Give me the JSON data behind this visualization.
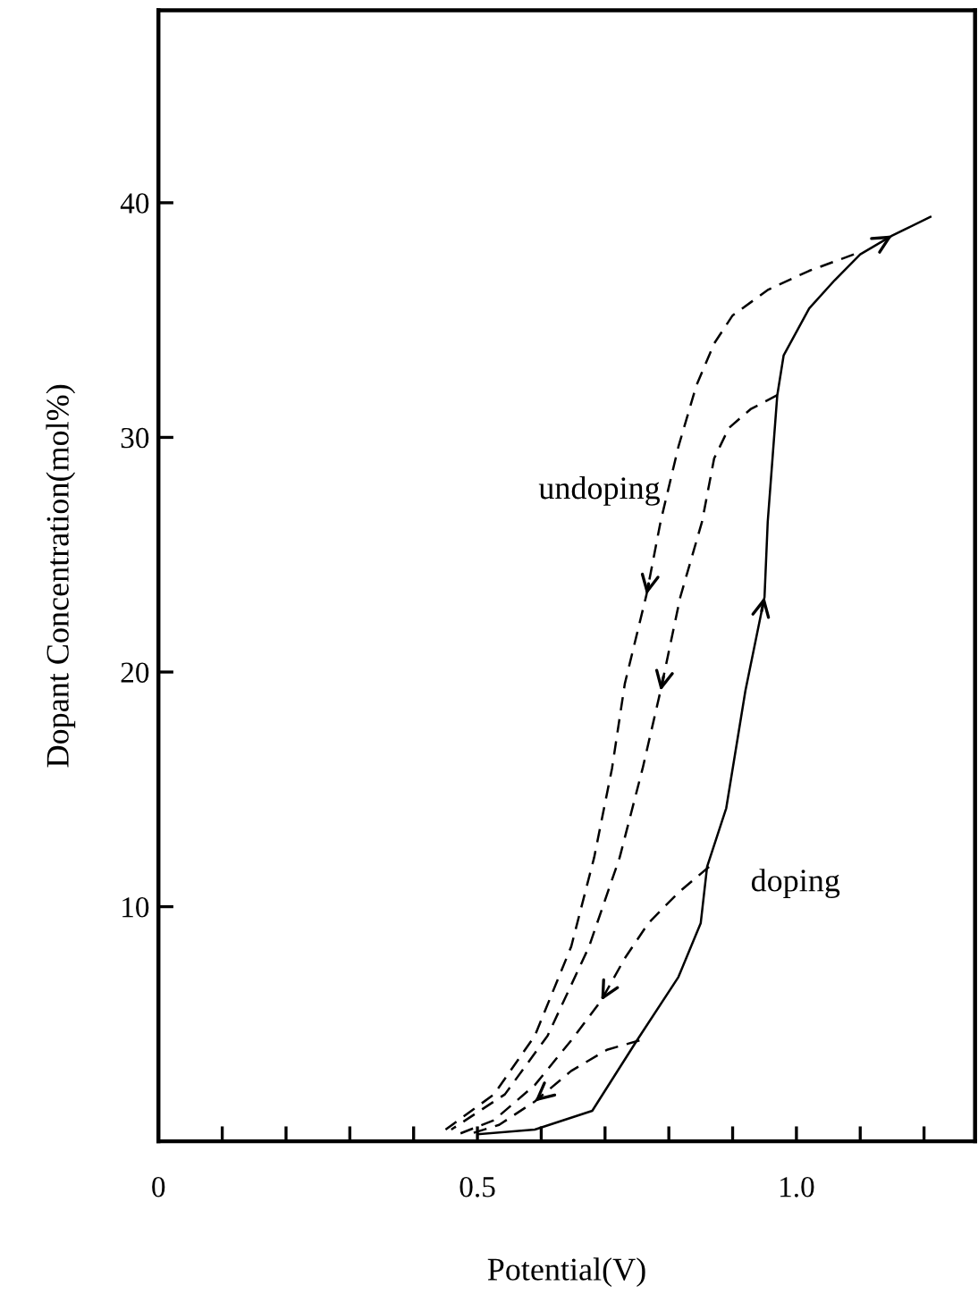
{
  "chart_data": {
    "type": "line",
    "xlabel": "Potential(V)",
    "ylabel": "Dopant Concentration(mol%)",
    "xlim": [
      0,
      1.28
    ],
    "ylim": [
      0,
      48.2
    ],
    "xticks": [
      0,
      {
        "value": 0.1,
        "label": null
      },
      {
        "value": 0.2,
        "label": null
      },
      {
        "value": 0.3,
        "label": null
      },
      {
        "value": 0.4,
        "label": null
      },
      0.5,
      {
        "value": 0.6,
        "label": null
      },
      {
        "value": 0.7,
        "label": null
      },
      {
        "value": 0.8,
        "label": null
      },
      {
        "value": 0.9,
        "label": null
      },
      {
        "value": 1.0,
        "label": "1.0"
      },
      {
        "value": 1.1,
        "label": null
      },
      {
        "value": 1.2,
        "label": null
      }
    ],
    "yticks": [
      10,
      20,
      30,
      40
    ],
    "grid": false,
    "legend": false,
    "marker": "none",
    "annotations": [
      "undoping",
      "doping"
    ],
    "series": [
      {
        "color": "#000000",
        "line_style": "solid",
        "x": [
          0.501,
          0.59,
          0.68,
          0.75,
          0.815,
          0.85,
          0.86,
          0.89,
          0.92,
          0.95,
          0.955,
          0.97,
          0.98,
          1.02,
          1.06,
          1.1,
          1.15,
          1.21
        ],
        "values": [
          0.3,
          0.5,
          1.3,
          4.3,
          7.0,
          9.3,
          11.7,
          14.2,
          19.2,
          23.2,
          26.4,
          31.8,
          33.5,
          35.5,
          36.7,
          37.8,
          38.6,
          39.4
        ]
      },
      {
        "color": "#000000",
        "line_style": "dashed",
        "x": [
          1.09,
          1.02,
          0.956,
          0.9,
          0.871,
          0.843,
          0.815,
          0.787,
          0.765,
          0.731,
          0.711,
          0.683,
          0.647,
          0.59,
          0.526,
          0.44
        ],
        "values": [
          37.8,
          37.1,
          36.3,
          35.2,
          34.0,
          32.2,
          29.6,
          26.4,
          23.3,
          19.5,
          15.9,
          12.1,
          8.3,
          4.5,
          2.0,
          0.3
        ]
      },
      {
        "color": "#000000",
        "line_style": "dashed",
        "x": [
          0.97,
          0.928,
          0.894,
          0.871,
          0.852,
          0.818,
          0.787,
          0.759,
          0.723,
          0.675,
          0.61,
          0.543,
          0.459
        ],
        "values": [
          31.8,
          31.2,
          30.4,
          29.1,
          26.4,
          23.2,
          19.2,
          15.9,
          12.1,
          8.3,
          4.5,
          2.0,
          0.5
        ]
      },
      {
        "color": "#000000",
        "line_style": "dashed",
        "x": [
          0.863,
          0.815,
          0.768,
          0.731,
          0.694,
          0.647,
          0.59,
          0.526,
          0.47
        ],
        "values": [
          11.7,
          10.6,
          9.3,
          7.8,
          6.0,
          4.3,
          2.4,
          0.9,
          0.3
        ]
      },
      {
        "color": "#000000",
        "line_style": "dashed",
        "x": [
          0.754,
          0.703,
          0.647,
          0.59,
          0.534,
          0.487
        ],
        "values": [
          4.3,
          3.9,
          3.0,
          1.7,
          0.7,
          0.3
        ]
      }
    ]
  }
}
